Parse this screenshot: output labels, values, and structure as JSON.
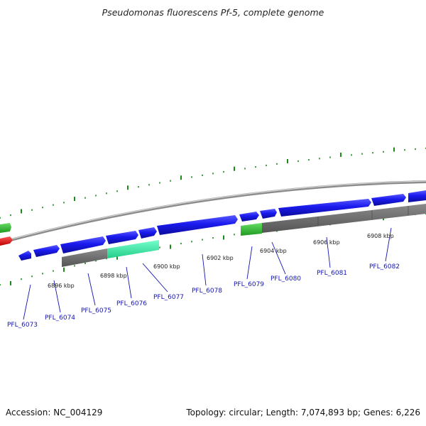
{
  "title": "Pseudomonas fluorescens Pf-5, complete genome",
  "footer": {
    "accession": "Accession: NC_004129",
    "summary": "Topology: circular; Length: 7,074,893 bp; Genes: 6,226"
  },
  "colors": {
    "forward_gene": "#1a1aee",
    "highlight_green": "#33bb33",
    "highlight_teal": "#33eeaa",
    "red_gene": "#ee1111",
    "feature_gray": "#777777",
    "backbone": "#999999",
    "tick_green": "#1a8a1a",
    "label_blue": "#1414b4"
  },
  "position_labels": [
    "6896 kbp",
    "6898 kbp",
    "6900 kbp",
    "6902 kbp",
    "6904 kbp",
    "6906 kbp",
    "6908 kbp"
  ],
  "gene_labels": [
    "PFL_6073",
    "PFL_6074",
    "PFL_6075",
    "PFL_6076",
    "PFL_6077",
    "PFL_6078",
    "PFL_6079",
    "PFL_6080",
    "PFL_6081",
    "PFL_6082"
  ]
}
